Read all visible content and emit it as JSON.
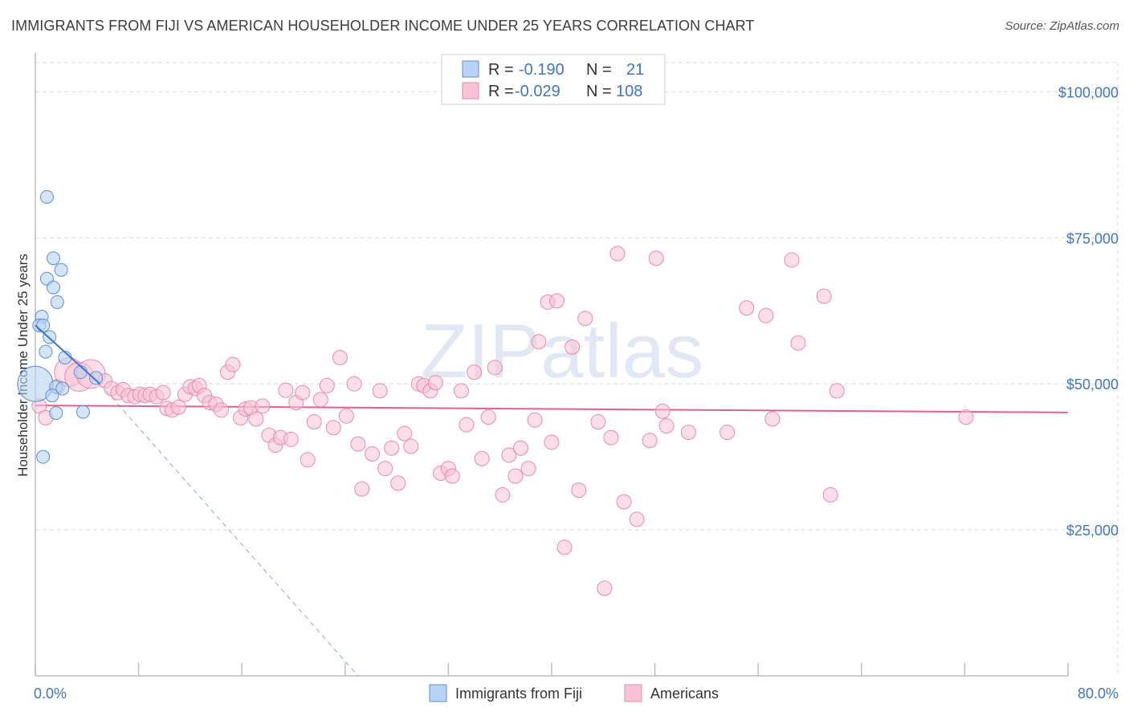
{
  "title": "IMMIGRANTS FROM FIJI VS AMERICAN HOUSEHOLDER INCOME UNDER 25 YEARS CORRELATION CHART",
  "source": "Source: ZipAtlas.com",
  "colors": {
    "fiji_fill": "#b8d3f3",
    "fiji_stroke": "#5a8fd6",
    "fiji_line": "#3a72d0",
    "americans_fill": "#f7c3d4",
    "americans_stroke": "#e88aaa",
    "americans_line": "#e2608c",
    "value_text": "#3f74c8",
    "grid": "#d9d9d9"
  },
  "legend": {
    "fiji": {
      "r_label": "R =",
      "r_value": "-0.190",
      "n_label": "N =",
      "n_value": "21"
    },
    "americans": {
      "r_label": "R =",
      "r_value": "-0.029",
      "n_label": "N =",
      "n_value": "108"
    }
  },
  "chart_data": {
    "type": "scatter",
    "title": "IMMIGRANTS FROM FIJI VS AMERICAN HOUSEHOLDER INCOME UNDER 25 YEARS CORRELATION CHART",
    "xlabel": "",
    "ylabel": "Householder Income Under 25 years",
    "xlim": [
      0,
      80
    ],
    "ylim": [
      0,
      105000
    ],
    "x_tick_labels": [
      "0.0%",
      "80.0%"
    ],
    "y_ticks": [
      25000,
      50000,
      75000,
      100000
    ],
    "y_tick_labels": [
      "$25,000",
      "$50,000",
      "$75,000",
      "$100,000"
    ],
    "grid": true,
    "watermark": "ZIPatlas",
    "series": [
      {
        "name": "Immigrants from Fiji",
        "trend": {
          "x": [
            0,
            5.0
          ],
          "y": [
            60000,
            50000
          ],
          "extended_to": [
            25.0,
            0
          ]
        },
        "points": [
          {
            "x": 0.9,
            "y": 82000
          },
          {
            "x": 1.4,
            "y": 71500
          },
          {
            "x": 2.0,
            "y": 69500
          },
          {
            "x": 0.9,
            "y": 68000
          },
          {
            "x": 1.4,
            "y": 66500
          },
          {
            "x": 1.7,
            "y": 64000
          },
          {
            "x": 0.5,
            "y": 61500
          },
          {
            "x": 0.3,
            "y": 60000
          },
          {
            "x": 0.6,
            "y": 60000
          },
          {
            "x": 1.1,
            "y": 58000
          },
          {
            "x": 0.8,
            "y": 55500
          },
          {
            "x": 2.3,
            "y": 54500
          },
          {
            "x": 0.0,
            "y": 50000,
            "size": "large"
          },
          {
            "x": 1.6,
            "y": 49500
          },
          {
            "x": 2.1,
            "y": 49200
          },
          {
            "x": 1.3,
            "y": 48000
          },
          {
            "x": 1.6,
            "y": 45000
          },
          {
            "x": 3.7,
            "y": 45200
          },
          {
            "x": 0.6,
            "y": 37500
          },
          {
            "x": 3.5,
            "y": 52000
          },
          {
            "x": 4.7,
            "y": 51000
          }
        ]
      },
      {
        "name": "Americans",
        "trend": {
          "x": [
            0,
            80
          ],
          "y": [
            46300,
            45100
          ]
        },
        "points": [
          {
            "x": 0.3,
            "y": 46200
          },
          {
            "x": 0.8,
            "y": 44200
          },
          {
            "x": 1.7,
            "y": 49500
          },
          {
            "x": 2.6,
            "y": 52000,
            "size": "large"
          },
          {
            "x": 3.4,
            "y": 51200,
            "size": "large"
          },
          {
            "x": 4.3,
            "y": 51700,
            "size": "large"
          },
          {
            "x": 5.4,
            "y": 50500
          },
          {
            "x": 5.9,
            "y": 49200
          },
          {
            "x": 6.4,
            "y": 48500
          },
          {
            "x": 6.8,
            "y": 49000
          },
          {
            "x": 7.2,
            "y": 48000
          },
          {
            "x": 7.7,
            "y": 47800
          },
          {
            "x": 8.1,
            "y": 48200
          },
          {
            "x": 8.5,
            "y": 48000
          },
          {
            "x": 8.9,
            "y": 48200
          },
          {
            "x": 9.4,
            "y": 47800
          },
          {
            "x": 9.9,
            "y": 48500
          },
          {
            "x": 10.2,
            "y": 45800
          },
          {
            "x": 10.6,
            "y": 45500
          },
          {
            "x": 11.1,
            "y": 46000
          },
          {
            "x": 11.6,
            "y": 48200
          },
          {
            "x": 12.0,
            "y": 49500
          },
          {
            "x": 12.4,
            "y": 49200
          },
          {
            "x": 12.7,
            "y": 49700
          },
          {
            "x": 13.1,
            "y": 48000
          },
          {
            "x": 13.5,
            "y": 46800
          },
          {
            "x": 14.0,
            "y": 46500
          },
          {
            "x": 14.4,
            "y": 45500
          },
          {
            "x": 14.9,
            "y": 52000
          },
          {
            "x": 15.3,
            "y": 53300
          },
          {
            "x": 15.9,
            "y": 44200
          },
          {
            "x": 16.3,
            "y": 45700
          },
          {
            "x": 16.7,
            "y": 45900
          },
          {
            "x": 17.1,
            "y": 44000
          },
          {
            "x": 17.6,
            "y": 46200
          },
          {
            "x": 18.1,
            "y": 41200
          },
          {
            "x": 18.6,
            "y": 39500
          },
          {
            "x": 19.0,
            "y": 40800
          },
          {
            "x": 19.4,
            "y": 48900
          },
          {
            "x": 19.8,
            "y": 40500
          },
          {
            "x": 20.2,
            "y": 46800
          },
          {
            "x": 20.7,
            "y": 48500
          },
          {
            "x": 21.1,
            "y": 37000
          },
          {
            "x": 21.6,
            "y": 43500
          },
          {
            "x": 22.1,
            "y": 47300
          },
          {
            "x": 22.6,
            "y": 49700
          },
          {
            "x": 23.1,
            "y": 42500
          },
          {
            "x": 23.6,
            "y": 54500
          },
          {
            "x": 24.1,
            "y": 44500
          },
          {
            "x": 24.7,
            "y": 50000
          },
          {
            "x": 25.0,
            "y": 39700
          },
          {
            "x": 25.3,
            "y": 32000
          },
          {
            "x": 26.1,
            "y": 38000
          },
          {
            "x": 26.7,
            "y": 48800
          },
          {
            "x": 27.1,
            "y": 35500
          },
          {
            "x": 27.6,
            "y": 39000
          },
          {
            "x": 28.1,
            "y": 33000
          },
          {
            "x": 28.6,
            "y": 41500
          },
          {
            "x": 29.1,
            "y": 39300
          },
          {
            "x": 29.7,
            "y": 50000
          },
          {
            "x": 30.1,
            "y": 49700
          },
          {
            "x": 30.6,
            "y": 48800
          },
          {
            "x": 31.0,
            "y": 50200
          },
          {
            "x": 31.4,
            "y": 34700
          },
          {
            "x": 32.0,
            "y": 35500
          },
          {
            "x": 32.3,
            "y": 34200
          },
          {
            "x": 33.0,
            "y": 48800
          },
          {
            "x": 33.4,
            "y": 43000
          },
          {
            "x": 34.0,
            "y": 52000
          },
          {
            "x": 34.6,
            "y": 37200
          },
          {
            "x": 35.1,
            "y": 44300
          },
          {
            "x": 35.6,
            "y": 52800
          },
          {
            "x": 36.2,
            "y": 31000
          },
          {
            "x": 36.7,
            "y": 37800
          },
          {
            "x": 37.2,
            "y": 34200
          },
          {
            "x": 37.6,
            "y": 39000
          },
          {
            "x": 38.2,
            "y": 35500
          },
          {
            "x": 38.7,
            "y": 43800
          },
          {
            "x": 39.0,
            "y": 57200
          },
          {
            "x": 39.7,
            "y": 64000
          },
          {
            "x": 40.4,
            "y": 64200
          },
          {
            "x": 40.0,
            "y": 40000
          },
          {
            "x": 41.0,
            "y": 22000
          },
          {
            "x": 41.6,
            "y": 56300
          },
          {
            "x": 42.1,
            "y": 31800
          },
          {
            "x": 42.6,
            "y": 61200
          },
          {
            "x": 43.6,
            "y": 43500
          },
          {
            "x": 44.1,
            "y": 15000
          },
          {
            "x": 44.6,
            "y": 40800
          },
          {
            "x": 45.1,
            "y": 72300
          },
          {
            "x": 45.6,
            "y": 29800
          },
          {
            "x": 46.6,
            "y": 26800
          },
          {
            "x": 47.6,
            "y": 40300
          },
          {
            "x": 48.1,
            "y": 71500
          },
          {
            "x": 48.6,
            "y": 45300
          },
          {
            "x": 48.9,
            "y": 42800
          },
          {
            "x": 50.6,
            "y": 41700
          },
          {
            "x": 53.6,
            "y": 41700
          },
          {
            "x": 55.1,
            "y": 63000
          },
          {
            "x": 56.6,
            "y": 61700
          },
          {
            "x": 57.1,
            "y": 44000
          },
          {
            "x": 58.6,
            "y": 71200
          },
          {
            "x": 59.1,
            "y": 57000
          },
          {
            "x": 61.1,
            "y": 65000
          },
          {
            "x": 61.6,
            "y": 31000
          },
          {
            "x": 62.1,
            "y": 48800
          },
          {
            "x": 72.1,
            "y": 44300
          }
        ]
      }
    ]
  },
  "bottom_legend": [
    {
      "label": "Immigrants from Fiji",
      "swatch": "fiji"
    },
    {
      "label": "Americans",
      "swatch": "americans"
    }
  ]
}
